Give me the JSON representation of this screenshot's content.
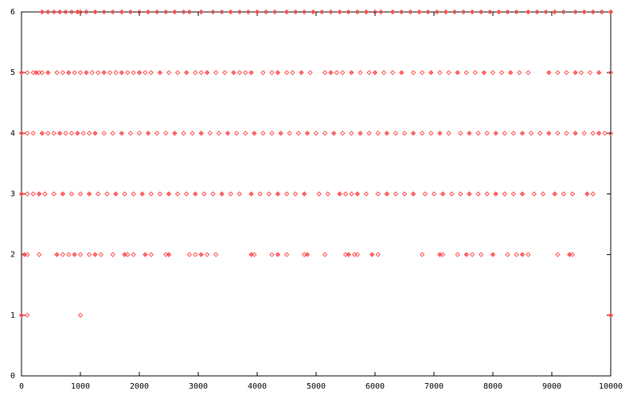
{
  "chart_data": {
    "type": "scatter",
    "xlim": [
      0,
      10000
    ],
    "ylim": [
      0,
      6
    ],
    "xticks": [
      0,
      1000,
      2000,
      3000,
      4000,
      5000,
      6000,
      7000,
      8000,
      9000,
      10000
    ],
    "yticks": [
      0,
      1,
      2,
      3,
      4,
      5,
      6
    ],
    "series": [
      {
        "color": "#ff4d4d",
        "x": [
          350,
          450,
          550,
          650,
          750,
          850,
          950,
          1000,
          1100,
          1250,
          1400,
          1550,
          1700,
          1850,
          2000,
          2150,
          2300,
          2450,
          2600,
          2750,
          2850,
          3050,
          3250,
          3400,
          3550,
          3700,
          3850,
          4000,
          4150,
          4300,
          4500,
          4650,
          4800,
          4950,
          5100,
          5250,
          5400,
          5550,
          5700,
          5850,
          6000,
          6100,
          6300,
          6450,
          6600,
          6750,
          6900,
          7050,
          7200,
          7350,
          7500,
          7650,
          7800,
          7950,
          8100,
          8250,
          8400,
          8600,
          8750,
          8900,
          9050,
          9200,
          9400,
          9550,
          9700,
          9850,
          10000
        ],
        "values": [
          6,
          6,
          6,
          6,
          6,
          6,
          6,
          6,
          6,
          6,
          6,
          6,
          6,
          6,
          6,
          6,
          6,
          6,
          6,
          6,
          6,
          6,
          6,
          6,
          6,
          6,
          6,
          6,
          6,
          6,
          6,
          6,
          6,
          6,
          6,
          6,
          6,
          6,
          6,
          6,
          6,
          6,
          6,
          6,
          6,
          6,
          6,
          6,
          6,
          6,
          6,
          6,
          6,
          6,
          6,
          6,
          6,
          6,
          6,
          6,
          6,
          6,
          6,
          6,
          6,
          6,
          6
        ]
      },
      {
        "color": "#ff4d4d",
        "x": [
          0,
          100,
          200,
          250,
          300,
          350,
          450,
          600,
          700,
          800,
          900,
          1000,
          1100,
          1200,
          1300,
          1400,
          1500,
          1600,
          1700,
          1800,
          1900,
          2000,
          2100,
          2200,
          2350,
          2500,
          2650,
          2800,
          2950,
          3050,
          3150,
          3300,
          3450,
          3600,
          3700,
          3800,
          3900,
          4100,
          4250,
          4350,
          4500,
          4600,
          4750,
          4900,
          5150,
          5250,
          5350,
          5450,
          5600,
          5750,
          5900,
          6000,
          6150,
          6300,
          6450,
          6650,
          6800,
          6950,
          7100,
          7250,
          7400,
          7550,
          7700,
          7850,
          8000,
          8150,
          8300,
          8450,
          8600,
          8950,
          9100,
          9250,
          9400,
          9500,
          9650,
          9800,
          10000
        ],
        "values": [
          5,
          5,
          5,
          5,
          5,
          5,
          5,
          5,
          5,
          5,
          5,
          5,
          5,
          5,
          5,
          5,
          5,
          5,
          5,
          5,
          5,
          5,
          5,
          5,
          5,
          5,
          5,
          5,
          5,
          5,
          5,
          5,
          5,
          5,
          5,
          5,
          5,
          5,
          5,
          5,
          5,
          5,
          5,
          5,
          5,
          5,
          5,
          5,
          5,
          5,
          5,
          5,
          5,
          5,
          5,
          5,
          5,
          5,
          5,
          5,
          5,
          5,
          5,
          5,
          5,
          5,
          5,
          5,
          5,
          5,
          5,
          5,
          5,
          5,
          5,
          5,
          5
        ]
      },
      {
        "color": "#ff4d4d",
        "x": [
          0,
          100,
          200,
          350,
          450,
          550,
          650,
          750,
          850,
          950,
          1050,
          1150,
          1250,
          1400,
          1550,
          1700,
          1850,
          2000,
          2150,
          2300,
          2450,
          2600,
          2750,
          2900,
          3050,
          3200,
          3350,
          3500,
          3650,
          3800,
          3950,
          4100,
          4250,
          4400,
          4550,
          4700,
          4850,
          5000,
          5150,
          5300,
          5450,
          5600,
          5750,
          5900,
          6050,
          6200,
          6350,
          6500,
          6650,
          6800,
          6950,
          7100,
          7250,
          7450,
          7600,
          7750,
          7900,
          8050,
          8200,
          8350,
          8500,
          8650,
          8800,
          8950,
          9100,
          9250,
          9400,
          9550,
          9700,
          9800,
          9900,
          10000
        ],
        "values": [
          4,
          4,
          4,
          4,
          4,
          4,
          4,
          4,
          4,
          4,
          4,
          4,
          4,
          4,
          4,
          4,
          4,
          4,
          4,
          4,
          4,
          4,
          4,
          4,
          4,
          4,
          4,
          4,
          4,
          4,
          4,
          4,
          4,
          4,
          4,
          4,
          4,
          4,
          4,
          4,
          4,
          4,
          4,
          4,
          4,
          4,
          4,
          4,
          4,
          4,
          4,
          4,
          4,
          4,
          4,
          4,
          4,
          4,
          4,
          4,
          4,
          4,
          4,
          4,
          4,
          4,
          4,
          4,
          4,
          4,
          4,
          4
        ]
      },
      {
        "color": "#ff4d4d",
        "x": [
          0,
          100,
          200,
          300,
          400,
          550,
          700,
          850,
          1000,
          1150,
          1300,
          1450,
          1600,
          1750,
          1900,
          2050,
          2200,
          2350,
          2500,
          2650,
          2800,
          2950,
          3100,
          3250,
          3400,
          3550,
          3700,
          3900,
          4050,
          4200,
          4350,
          4500,
          4650,
          4800,
          5050,
          5200,
          5400,
          5500,
          5600,
          5700,
          5850,
          6050,
          6200,
          6350,
          6500,
          6650,
          6850,
          7000,
          7150,
          7300,
          7450,
          7600,
          7750,
          7900,
          8050,
          8200,
          8350,
          8500,
          8700,
          8850,
          9050,
          9200,
          9350,
          9600,
          9700
        ],
        "values": [
          3,
          3,
          3,
          3,
          3,
          3,
          3,
          3,
          3,
          3,
          3,
          3,
          3,
          3,
          3,
          3,
          3,
          3,
          3,
          3,
          3,
          3,
          3,
          3,
          3,
          3,
          3,
          3,
          3,
          3,
          3,
          3,
          3,
          3,
          3,
          3,
          3,
          3,
          3,
          3,
          3,
          3,
          3,
          3,
          3,
          3,
          3,
          3,
          3,
          3,
          3,
          3,
          3,
          3,
          3,
          3,
          3,
          3,
          3,
          3,
          3,
          3,
          3,
          3,
          3
        ]
      },
      {
        "color": "#ff4d4d",
        "x": [
          50,
          100,
          300,
          600,
          700,
          800,
          900,
          1000,
          1150,
          1250,
          1350,
          1550,
          1750,
          1800,
          1900,
          2100,
          2200,
          2450,
          2500,
          2850,
          2950,
          3050,
          3150,
          3300,
          3900,
          3950,
          4250,
          4350,
          4500,
          4800,
          4850,
          5150,
          5500,
          5550,
          5650,
          5700,
          5950,
          6050,
          6800,
          7100,
          7150,
          7400,
          7550,
          7650,
          7800,
          8000,
          8250,
          8400,
          8500,
          8600,
          9100,
          9300,
          9350
        ],
        "values": [
          2,
          2,
          2,
          2,
          2,
          2,
          2,
          2,
          2,
          2,
          2,
          2,
          2,
          2,
          2,
          2,
          2,
          2,
          2,
          2,
          2,
          2,
          2,
          2,
          2,
          2,
          2,
          2,
          2,
          2,
          2,
          2,
          2,
          2,
          2,
          2,
          2,
          2,
          2,
          2,
          2,
          2,
          2,
          2,
          2,
          2,
          2,
          2,
          2,
          2,
          2,
          2,
          2
        ]
      },
      {
        "color": "#ff4d4d",
        "x": [
          0,
          100,
          1000,
          10000
        ],
        "values": [
          1,
          1,
          1,
          1
        ]
      }
    ]
  }
}
